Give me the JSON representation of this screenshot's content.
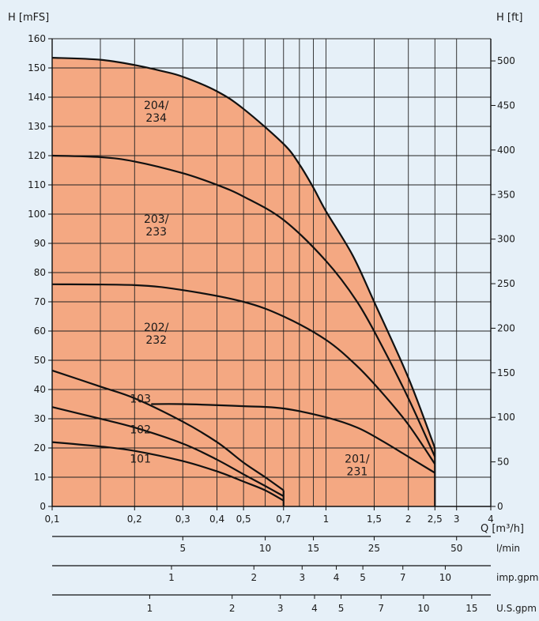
{
  "chart_data": {
    "type": "line",
    "y_left_label": "H  [mFS]",
    "y_right_label": "H  [ft]",
    "x_label": "Q [m³/h]",
    "x_scale": "log",
    "xlim": [
      0.1,
      4
    ],
    "ylim": [
      0,
      160
    ],
    "y_right_lim": [
      0,
      524.9
    ],
    "x_ticks": [
      {
        "v": 0.1,
        "label": "0,1"
      },
      {
        "v": 0.2,
        "label": "0,2"
      },
      {
        "v": 0.3,
        "label": "0,3"
      },
      {
        "v": 0.4,
        "label": "0,4"
      },
      {
        "v": 0.5,
        "label": "0,5"
      },
      {
        "v": 0.7,
        "label": "0,7"
      },
      {
        "v": 1,
        "label": "1"
      },
      {
        "v": 1.5,
        "label": "1,5"
      },
      {
        "v": 2,
        "label": "2"
      },
      {
        "v": 2.5,
        "label": "2,5"
      },
      {
        "v": 3,
        "label": "3"
      },
      {
        "v": 4,
        "label": "4"
      }
    ],
    "x_grid": [
      0.1,
      0.15,
      0.2,
      0.3,
      0.4,
      0.5,
      0.6,
      0.7,
      0.8,
      0.9,
      1,
      1.5,
      2,
      2.5,
      3,
      4
    ],
    "y_ticks": [
      0,
      10,
      20,
      30,
      40,
      50,
      60,
      70,
      80,
      90,
      100,
      110,
      120,
      130,
      140,
      150,
      160
    ],
    "y_right_ticks": [
      0,
      50,
      100,
      150,
      200,
      250,
      300,
      350,
      400,
      450,
      500
    ],
    "secondary_axes": [
      {
        "unit": "l/min",
        "factor": 16.667,
        "ticks": [
          {
            "v": 5,
            "label": "5"
          },
          {
            "v": 10,
            "label": "10"
          },
          {
            "v": 15,
            "label": "15"
          },
          {
            "v": 25,
            "label": "25"
          },
          {
            "v": 50,
            "label": "50"
          }
        ]
      },
      {
        "unit": "imp.gpm",
        "factor": 3.666,
        "ticks": [
          {
            "v": 1,
            "label": "1"
          },
          {
            "v": 2,
            "label": "2"
          },
          {
            "v": 3,
            "label": "3"
          },
          {
            "v": 4,
            "label": "4"
          },
          {
            "v": 5,
            "label": "5"
          },
          {
            "v": 7,
            "label": "7"
          },
          {
            "v": 10,
            "label": "10"
          }
        ]
      },
      {
        "unit": "U.S.gpm",
        "factor": 4.403,
        "ticks": [
          {
            "v": 1,
            "label": "1"
          },
          {
            "v": 2,
            "label": "2"
          },
          {
            "v": 3,
            "label": "3"
          },
          {
            "v": 4,
            "label": "4"
          },
          {
            "v": 5,
            "label": "5"
          },
          {
            "v": 7,
            "label": "7"
          },
          {
            "v": 10,
            "label": "10"
          },
          {
            "v": 15,
            "label": "15"
          }
        ]
      }
    ],
    "region_fill": "#f4a882",
    "grid": true,
    "series": [
      {
        "label": "101",
        "x": [
          0.1,
          0.15,
          0.2,
          0.3,
          0.4,
          0.5,
          0.6,
          0.7
        ],
        "y": [
          22,
          20.5,
          19,
          15.5,
          12,
          8.5,
          5.5,
          2
        ]
      },
      {
        "label": "102",
        "x": [
          0.1,
          0.15,
          0.2,
          0.3,
          0.4,
          0.5,
          0.6,
          0.7
        ],
        "y": [
          34,
          30,
          27,
          21.5,
          16,
          11,
          7,
          3.5
        ]
      },
      {
        "label": "103",
        "x": [
          0.1,
          0.15,
          0.2,
          0.3,
          0.4,
          0.5,
          0.6,
          0.7
        ],
        "y": [
          46.5,
          41,
          37,
          29,
          22,
          15,
          10,
          5.5
        ]
      },
      {
        "label": "201/\n231",
        "x": [
          0.23,
          0.3,
          0.5,
          0.7,
          1,
          1.3,
          1.6,
          2,
          2.5
        ],
        "y": [
          35,
          35,
          34.3,
          33.5,
          30.5,
          27,
          22.5,
          17,
          11.5
        ]
      },
      {
        "label": "202/\n232",
        "x": [
          0.1,
          0.2,
          0.3,
          0.5,
          0.7,
          1,
          1.3,
          1.6,
          2,
          2.5
        ],
        "y": [
          76,
          75.7,
          74,
          70,
          65,
          57,
          48,
          39,
          28,
          14.5
        ]
      },
      {
        "label": "203/\n233",
        "x": [
          0.1,
          0.15,
          0.2,
          0.3,
          0.4,
          0.5,
          0.7,
          1,
          1.3,
          1.6,
          2,
          2.5
        ],
        "y": [
          120,
          119.5,
          118,
          114,
          110,
          106,
          98,
          84,
          70,
          55,
          37,
          17
        ]
      },
      {
        "label": "204/\n234",
        "x": [
          0.1,
          0.15,
          0.2,
          0.25,
          0.3,
          0.4,
          0.5,
          0.7,
          0.8,
          0.9,
          1,
          1.25,
          1.5,
          2,
          2.5
        ],
        "y": [
          153.5,
          152.8,
          151,
          149,
          147,
          142,
          136,
          124,
          117,
          109,
          101,
          86,
          70,
          44,
          20
        ]
      }
    ]
  }
}
